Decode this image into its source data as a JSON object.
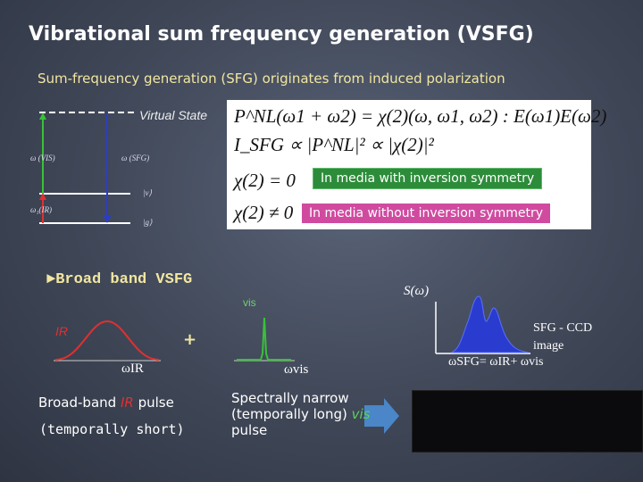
{
  "title": "Vibrational sum frequency generation (VSFG)",
  "subtitle": "Sum-frequency generation (SFG) originates from induced polarization",
  "diagram": {
    "virtual_state": "Virtual State",
    "omega_vis_label": "ω (VIS)",
    "omega_sfg_label": "ω (SFG)",
    "omega_ir_label": "ω₁(IR)",
    "ket_v": "|v⟩",
    "ket_g": "|g⟩"
  },
  "equations": {
    "eq1": "P^NL(ω1 + ω2) = χ(2)(ω, ω1, ω2) : E(ω1)E(ω2)",
    "eq2": "I_SFG ∝ |P^NL|² ∝ |χ(2)|²",
    "eq3": "χ(2) = 0",
    "eq4": "χ(2) ≠ 0"
  },
  "notes": {
    "with_symmetry": "In media with inversion symmetry",
    "without_symmetry": "In media without inversion symmetry"
  },
  "broadband": {
    "heading": "►Broad band VSFG",
    "vis": "vis",
    "s_omega": "S(ω)",
    "ir": "IR",
    "plus": "+",
    "omega_ir": "ωIR",
    "omega_vis": "ωvis",
    "sfg_ccd_line1": "SFG - CCD",
    "sfg_ccd_line2": "image",
    "omega_sfg_eq": "ωSFG= ωIR+ ωvis",
    "broad_pulse_prefix": "Broad-band ",
    "broad_pulse_ir": "IR",
    "broad_pulse_suffix": " pulse",
    "temporally_short": "(temporally short)",
    "narrow_line1": "Spectrally narrow",
    "narrow_line2": "(temporally long) ",
    "narrow_vis": "vis",
    "narrow_line3": "pulse"
  },
  "colors": {
    "title_text": "#ffffff",
    "subtitle_text": "#f2e6a0",
    "green_box": "#2d8c3a",
    "pink_box": "#d04ba0",
    "ir_red": "#e03030",
    "vis_green": "#5ccf5c",
    "sfg_blue": "#2a3cd0",
    "arrow_blue": "#4a86c8"
  }
}
